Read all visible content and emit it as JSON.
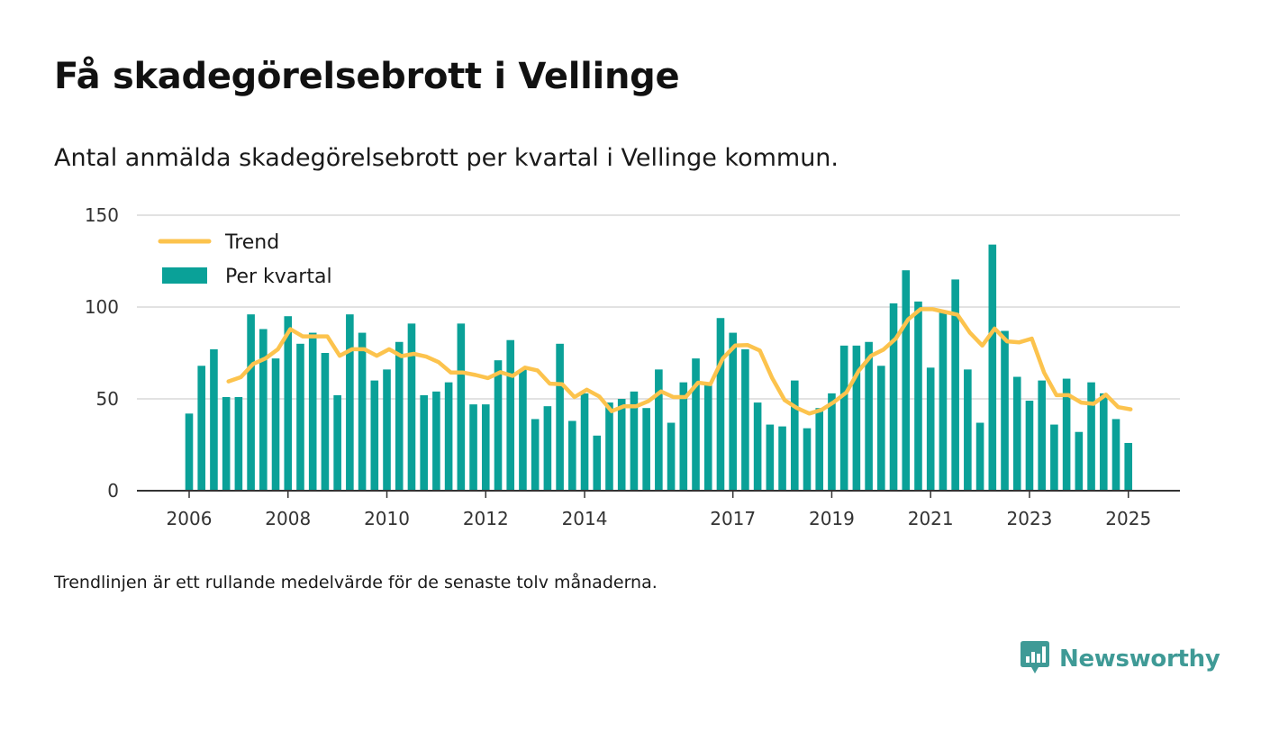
{
  "title": "Få skadegörelsebrott i Vellinge",
  "subtitle": "Antal anmälda skadegörelsebrott per kvartal i Vellinge kommun.",
  "footnote": "Trendlinjen är ett rullande medelvärde för de senaste tolv månaderna.",
  "brand": {
    "name": "Newsworthy",
    "icon": "newsworthy-logo-icon"
  },
  "colors": {
    "bars": "#0aa198",
    "trend": "#fcc34d",
    "grid": "#d9d9d9",
    "axis": "#333333",
    "brand": "#3f9a96"
  },
  "legend": {
    "trend_label": "Trend",
    "bars_label": "Per kvartal",
    "placement": "top-left"
  },
  "chart_data": {
    "type": "bar",
    "title": "Få skadegörelsebrott i Vellinge",
    "xlabel": "",
    "ylabel": "",
    "ylim": [
      0,
      150
    ],
    "y_ticks": [
      0,
      50,
      100,
      150
    ],
    "x_tick_labels": [
      "2006",
      "2008",
      "2010",
      "2012",
      "2014",
      "2017",
      "2019",
      "2021",
      "2023",
      "2025"
    ],
    "x_tick_years": [
      2006,
      2008,
      2010,
      2012,
      2014,
      2017,
      2019,
      2021,
      2023,
      2025
    ],
    "x_start": "2006 Q1",
    "grid": true,
    "series": [
      {
        "name": "Per kvartal",
        "type": "bar",
        "values": [
          42,
          68,
          77,
          51,
          51,
          96,
          88,
          72,
          95,
          80,
          86,
          75,
          52,
          96,
          86,
          60,
          66,
          81,
          91,
          52,
          54,
          59,
          91,
          47,
          47,
          71,
          82,
          66,
          39,
          46,
          80,
          38,
          53,
          30,
          48,
          50,
          54,
          45,
          66,
          37,
          59,
          72,
          59,
          94,
          86,
          77,
          48,
          36,
          35,
          60,
          34,
          45,
          53,
          79,
          79,
          81,
          68,
          102,
          120,
          103,
          67,
          97,
          115,
          66,
          37,
          134,
          87,
          62,
          49,
          60,
          36,
          61,
          32,
          59,
          53,
          39,
          26
        ]
      },
      {
        "name": "Trend",
        "type": "line",
        "start_index": 3,
        "values": [
          59.5,
          61.8,
          69,
          72,
          77,
          88,
          84,
          84,
          84,
          73.5,
          77,
          77,
          73.5,
          77,
          73.3,
          74.5,
          73,
          70,
          64.3,
          64.3,
          63,
          61.3,
          64.5,
          62.5,
          67,
          65.5,
          58.3,
          58,
          51,
          55,
          51.3,
          43.3,
          46,
          46,
          48.8,
          54,
          51,
          51,
          58.8,
          58,
          72,
          79,
          79.3,
          76.3,
          61.3,
          49.3,
          45,
          42,
          44,
          48.3,
          53.5,
          65.3,
          73.5,
          76.8,
          82.8,
          93.3,
          98.8,
          98.8,
          97.3,
          95.8,
          86,
          79,
          88.3,
          81.3,
          80.8,
          82.8,
          64.3,
          52,
          52,
          48,
          47.3,
          52.3,
          45.5,
          44.3
        ]
      }
    ]
  }
}
